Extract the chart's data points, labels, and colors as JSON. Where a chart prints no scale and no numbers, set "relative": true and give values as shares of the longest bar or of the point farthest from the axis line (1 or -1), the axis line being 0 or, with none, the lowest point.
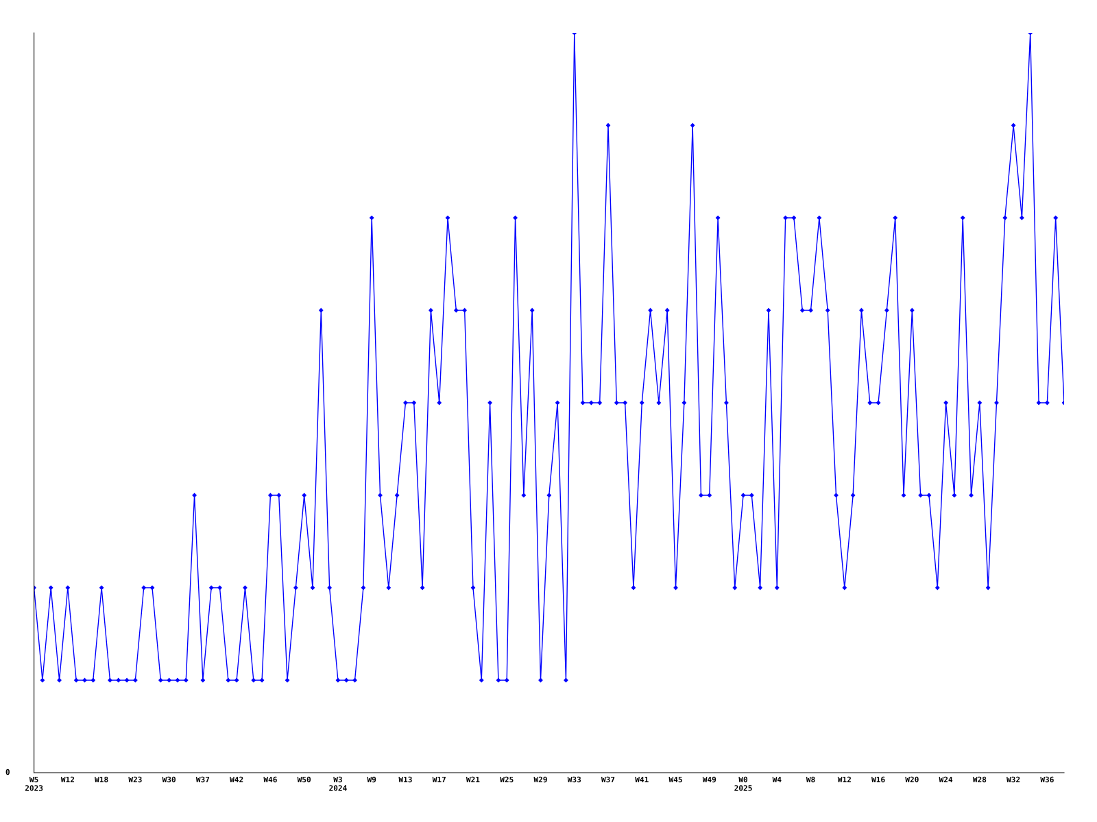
{
  "chart_data": {
    "type": "line",
    "relative": true,
    "marker": "diamond",
    "line_style": "solid",
    "grid": false,
    "annotations": [
      "0"
    ],
    "categories": [
      "W5\n2023",
      null,
      null,
      null,
      "W12",
      null,
      null,
      null,
      "W18",
      null,
      null,
      null,
      "W23",
      null,
      null,
      null,
      "W30",
      null,
      null,
      null,
      "W37",
      null,
      null,
      null,
      "W42",
      null,
      null,
      null,
      "W46",
      null,
      null,
      null,
      "W50",
      null,
      null,
      null,
      "W3\n2024",
      null,
      null,
      null,
      "W9",
      null,
      null,
      null,
      "W13",
      null,
      null,
      null,
      "W17",
      null,
      null,
      null,
      "W21",
      null,
      null,
      null,
      "W25",
      null,
      null,
      null,
      "W29",
      null,
      null,
      null,
      "W33",
      null,
      null,
      null,
      "W37",
      null,
      null,
      null,
      "W41",
      null,
      null,
      null,
      "W45",
      null,
      null,
      null,
      "W49",
      null,
      null,
      null,
      "W0\n2025",
      null,
      null,
      null,
      "W4",
      null,
      null,
      null,
      "W8",
      null,
      null,
      null,
      "W12",
      null,
      null,
      null,
      "W16",
      null,
      null,
      null,
      "W20",
      null,
      null,
      null,
      "W24",
      null,
      null,
      null,
      "W28",
      null,
      null,
      null,
      "W32",
      null,
      null,
      null,
      "W36",
      null,
      null
    ],
    "series": [
      {
        "color": "#0000ff",
        "values": [
          0.25,
          0.125,
          0.25,
          0.125,
          0.25,
          0.125,
          0.125,
          0.125,
          0.25,
          0.125,
          0.125,
          0.125,
          0.125,
          0.25,
          0.25,
          0.125,
          0.125,
          0.125,
          0.125,
          0.375,
          0.125,
          0.25,
          0.25,
          0.125,
          0.125,
          0.25,
          0.125,
          0.125,
          0.375,
          0.375,
          0.125,
          0.25,
          0.375,
          0.25,
          0.625,
          0.25,
          0.125,
          0.125,
          0.125,
          0.25,
          0.75,
          0.375,
          0.25,
          0.375,
          0.5,
          0.5,
          0.25,
          0.625,
          0.5,
          0.75,
          0.625,
          0.625,
          0.25,
          0.125,
          0.5,
          0.125,
          0.125,
          0.75,
          0.375,
          0.625,
          0.125,
          0.375,
          0.5,
          0.125,
          1,
          0.5,
          0.5,
          0.5,
          0.875,
          0.5,
          0.5,
          0.25,
          0.5,
          0.625,
          0.5,
          0.625,
          0.25,
          0.5,
          0.875,
          0.375,
          0.375,
          0.75,
          0.5,
          0.25,
          0.375,
          0.375,
          0.25,
          0.625,
          0.25,
          0.75,
          0.75,
          0.625,
          0.625,
          0.75,
          0.625,
          0.375,
          0.25,
          0.375,
          0.625,
          0.5,
          0.5,
          0.625,
          0.75,
          0.375,
          0.625,
          0.375,
          0.375,
          0.25,
          0.5,
          0.375,
          0.75,
          0.375,
          0.5,
          0.25,
          0.5,
          0.75,
          0.875,
          0.75,
          1,
          0.5,
          0.5,
          0.75,
          0.5
        ]
      }
    ]
  }
}
